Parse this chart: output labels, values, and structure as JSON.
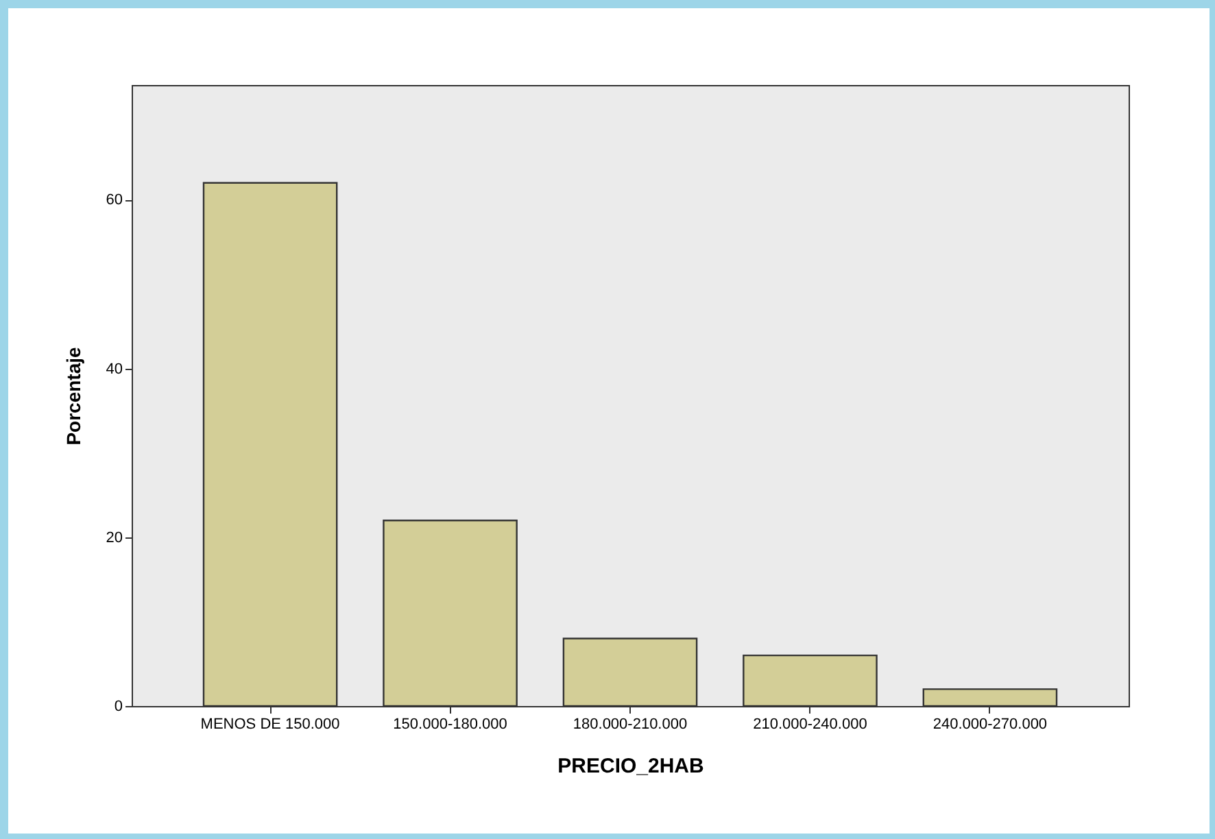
{
  "chart_data": {
    "type": "bar",
    "categories": [
      "MENOS DE 150.000",
      "150.000-180.000",
      "180.000-210.000",
      "210.000-240.000",
      "240.000-270.000"
    ],
    "values": [
      62,
      22,
      8,
      6,
      2
    ],
    "color": "#d3ce97",
    "xlabel": "PRECIO_2HAB",
    "ylabel": "Porcentaje",
    "ylim": [
      0,
      73.6
    ],
    "yticks": [
      0,
      20,
      40,
      60
    ],
    "grid": false
  }
}
